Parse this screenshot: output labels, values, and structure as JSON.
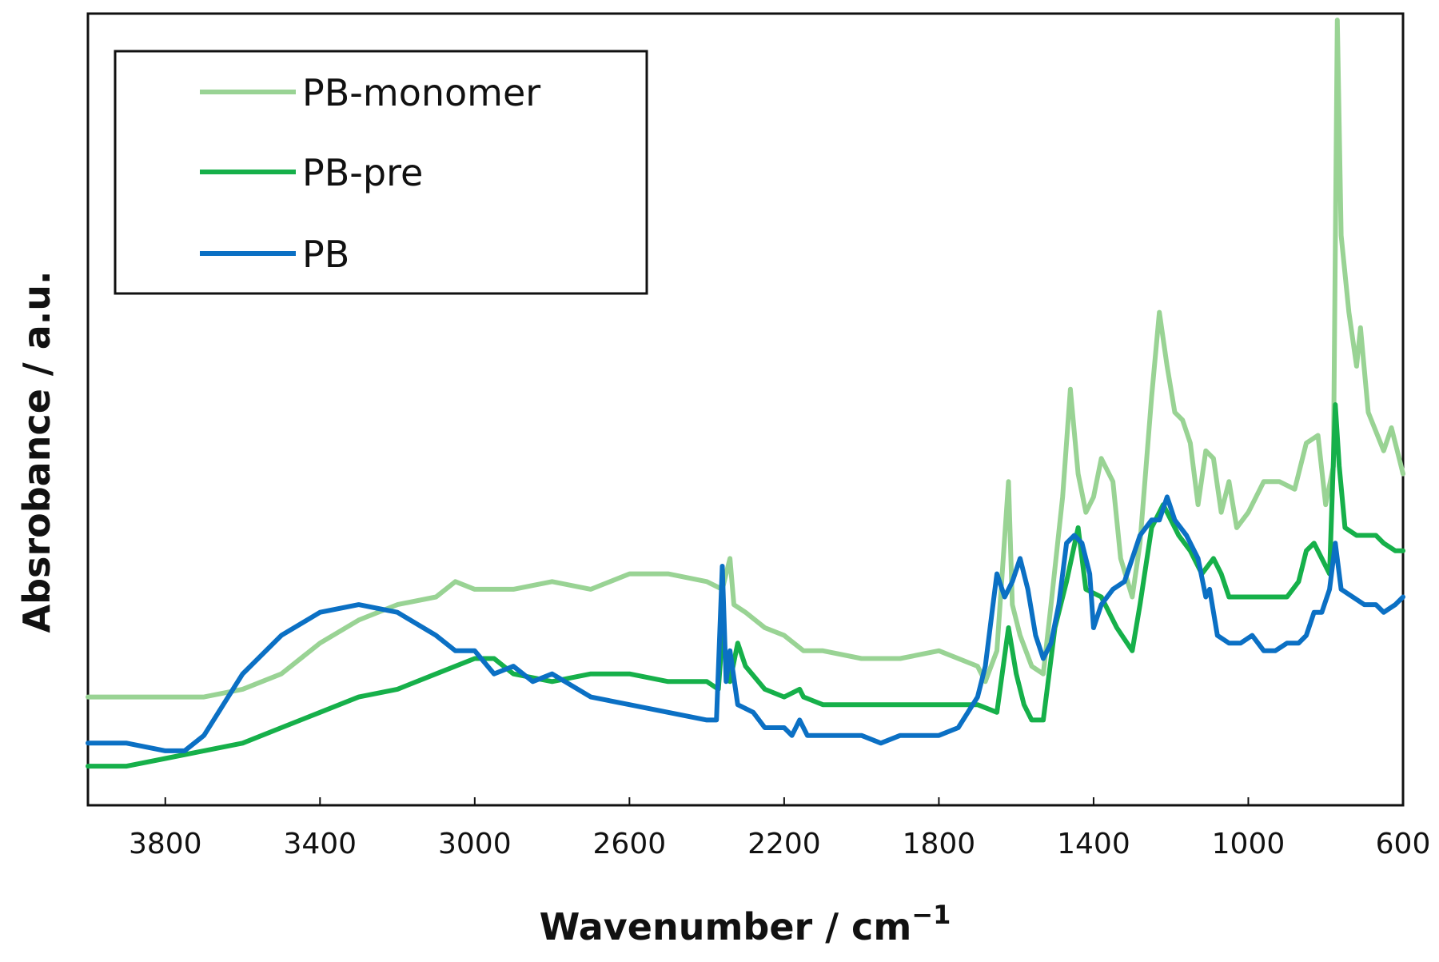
{
  "chart_data": {
    "type": "line",
    "title": "",
    "xlabel": "Wavenumber / cm",
    "xlabel_superscript": "−1",
    "ylabel": "Absrobance / a.u.",
    "xlim": [
      4000,
      600
    ],
    "ylim": [
      0,
      1
    ],
    "x_reversed": true,
    "x_ticks": [
      3800,
      3400,
      3000,
      2600,
      2200,
      1800,
      1400,
      1000,
      600
    ],
    "y_ticks": [],
    "grid": false,
    "legend_position": "top-left",
    "series": [
      {
        "name": "PB-monomer",
        "color": "#99d394",
        "points": [
          [
            4000,
            0.12
          ],
          [
            3800,
            0.12
          ],
          [
            3700,
            0.12
          ],
          [
            3600,
            0.13
          ],
          [
            3500,
            0.15
          ],
          [
            3400,
            0.19
          ],
          [
            3300,
            0.22
          ],
          [
            3200,
            0.24
          ],
          [
            3100,
            0.25
          ],
          [
            3050,
            0.27
          ],
          [
            3000,
            0.26
          ],
          [
            2900,
            0.26
          ],
          [
            2800,
            0.27
          ],
          [
            2700,
            0.26
          ],
          [
            2600,
            0.28
          ],
          [
            2500,
            0.28
          ],
          [
            2400,
            0.27
          ],
          [
            2360,
            0.26
          ],
          [
            2340,
            0.3
          ],
          [
            2330,
            0.24
          ],
          [
            2300,
            0.23
          ],
          [
            2250,
            0.21
          ],
          [
            2200,
            0.2
          ],
          [
            2150,
            0.18
          ],
          [
            2100,
            0.18
          ],
          [
            2000,
            0.17
          ],
          [
            1900,
            0.17
          ],
          [
            1800,
            0.18
          ],
          [
            1700,
            0.16
          ],
          [
            1680,
            0.14
          ],
          [
            1650,
            0.18
          ],
          [
            1620,
            0.4
          ],
          [
            1610,
            0.24
          ],
          [
            1590,
            0.2
          ],
          [
            1560,
            0.16
          ],
          [
            1530,
            0.15
          ],
          [
            1510,
            0.24
          ],
          [
            1480,
            0.38
          ],
          [
            1460,
            0.52
          ],
          [
            1440,
            0.41
          ],
          [
            1420,
            0.36
          ],
          [
            1400,
            0.38
          ],
          [
            1380,
            0.43
          ],
          [
            1350,
            0.4
          ],
          [
            1330,
            0.3
          ],
          [
            1300,
            0.25
          ],
          [
            1280,
            0.32
          ],
          [
            1250,
            0.51
          ],
          [
            1230,
            0.62
          ],
          [
            1210,
            0.55
          ],
          [
            1190,
            0.49
          ],
          [
            1170,
            0.48
          ],
          [
            1150,
            0.45
          ],
          [
            1130,
            0.37
          ],
          [
            1110,
            0.44
          ],
          [
            1090,
            0.43
          ],
          [
            1070,
            0.36
          ],
          [
            1050,
            0.4
          ],
          [
            1030,
            0.34
          ],
          [
            1000,
            0.36
          ],
          [
            960,
            0.4
          ],
          [
            920,
            0.4
          ],
          [
            880,
            0.39
          ],
          [
            850,
            0.45
          ],
          [
            820,
            0.46
          ],
          [
            800,
            0.37
          ],
          [
            780,
            0.42
          ],
          [
            770,
            1.0
          ],
          [
            760,
            0.72
          ],
          [
            740,
            0.62
          ],
          [
            720,
            0.55
          ],
          [
            710,
            0.6
          ],
          [
            690,
            0.49
          ],
          [
            650,
            0.44
          ],
          [
            630,
            0.47
          ],
          [
            610,
            0.43
          ],
          [
            600,
            0.41
          ]
        ]
      },
      {
        "name": "PB-pre",
        "color": "#16b04a",
        "points": [
          [
            4000,
            0.03
          ],
          [
            3900,
            0.03
          ],
          [
            3800,
            0.04
          ],
          [
            3700,
            0.05
          ],
          [
            3600,
            0.06
          ],
          [
            3500,
            0.08
          ],
          [
            3400,
            0.1
          ],
          [
            3300,
            0.12
          ],
          [
            3200,
            0.13
          ],
          [
            3100,
            0.15
          ],
          [
            3000,
            0.17
          ],
          [
            2950,
            0.17
          ],
          [
            2900,
            0.15
          ],
          [
            2800,
            0.14
          ],
          [
            2700,
            0.15
          ],
          [
            2600,
            0.15
          ],
          [
            2500,
            0.14
          ],
          [
            2400,
            0.14
          ],
          [
            2370,
            0.13
          ],
          [
            2360,
            0.2
          ],
          [
            2340,
            0.14
          ],
          [
            2320,
            0.19
          ],
          [
            2300,
            0.16
          ],
          [
            2250,
            0.13
          ],
          [
            2200,
            0.12
          ],
          [
            2160,
            0.13
          ],
          [
            2150,
            0.12
          ],
          [
            2100,
            0.11
          ],
          [
            2000,
            0.11
          ],
          [
            1900,
            0.11
          ],
          [
            1800,
            0.11
          ],
          [
            1700,
            0.11
          ],
          [
            1650,
            0.1
          ],
          [
            1620,
            0.21
          ],
          [
            1600,
            0.15
          ],
          [
            1580,
            0.11
          ],
          [
            1560,
            0.09
          ],
          [
            1530,
            0.09
          ],
          [
            1500,
            0.21
          ],
          [
            1470,
            0.27
          ],
          [
            1440,
            0.34
          ],
          [
            1420,
            0.26
          ],
          [
            1380,
            0.25
          ],
          [
            1340,
            0.21
          ],
          [
            1300,
            0.18
          ],
          [
            1280,
            0.24
          ],
          [
            1250,
            0.34
          ],
          [
            1220,
            0.37
          ],
          [
            1200,
            0.35
          ],
          [
            1180,
            0.33
          ],
          [
            1150,
            0.31
          ],
          [
            1120,
            0.28
          ],
          [
            1090,
            0.3
          ],
          [
            1070,
            0.28
          ],
          [
            1050,
            0.25
          ],
          [
            1020,
            0.25
          ],
          [
            980,
            0.25
          ],
          [
            950,
            0.25
          ],
          [
            900,
            0.25
          ],
          [
            870,
            0.27
          ],
          [
            850,
            0.31
          ],
          [
            830,
            0.32
          ],
          [
            810,
            0.3
          ],
          [
            790,
            0.28
          ],
          [
            775,
            0.5
          ],
          [
            765,
            0.42
          ],
          [
            750,
            0.34
          ],
          [
            720,
            0.33
          ],
          [
            700,
            0.33
          ],
          [
            670,
            0.33
          ],
          [
            650,
            0.32
          ],
          [
            620,
            0.31
          ],
          [
            600,
            0.31
          ]
        ]
      },
      {
        "name": "PB",
        "color": "#0b70c4",
        "points": [
          [
            4000,
            0.06
          ],
          [
            3900,
            0.06
          ],
          [
            3800,
            0.05
          ],
          [
            3750,
            0.05
          ],
          [
            3700,
            0.07
          ],
          [
            3650,
            0.11
          ],
          [
            3600,
            0.15
          ],
          [
            3500,
            0.2
          ],
          [
            3400,
            0.23
          ],
          [
            3300,
            0.24
          ],
          [
            3200,
            0.23
          ],
          [
            3100,
            0.2
          ],
          [
            3050,
            0.18
          ],
          [
            3000,
            0.18
          ],
          [
            2950,
            0.15
          ],
          [
            2900,
            0.16
          ],
          [
            2850,
            0.14
          ],
          [
            2800,
            0.15
          ],
          [
            2700,
            0.12
          ],
          [
            2600,
            0.11
          ],
          [
            2500,
            0.1
          ],
          [
            2400,
            0.09
          ],
          [
            2375,
            0.09
          ],
          [
            2360,
            0.29
          ],
          [
            2350,
            0.14
          ],
          [
            2340,
            0.18
          ],
          [
            2320,
            0.11
          ],
          [
            2280,
            0.1
          ],
          [
            2250,
            0.08
          ],
          [
            2200,
            0.08
          ],
          [
            2180,
            0.07
          ],
          [
            2160,
            0.09
          ],
          [
            2140,
            0.07
          ],
          [
            2100,
            0.07
          ],
          [
            2000,
            0.07
          ],
          [
            1950,
            0.06
          ],
          [
            1900,
            0.07
          ],
          [
            1800,
            0.07
          ],
          [
            1750,
            0.08
          ],
          [
            1700,
            0.12
          ],
          [
            1680,
            0.16
          ],
          [
            1660,
            0.24
          ],
          [
            1650,
            0.28
          ],
          [
            1630,
            0.25
          ],
          [
            1610,
            0.27
          ],
          [
            1590,
            0.3
          ],
          [
            1570,
            0.26
          ],
          [
            1550,
            0.2
          ],
          [
            1530,
            0.17
          ],
          [
            1510,
            0.19
          ],
          [
            1490,
            0.24
          ],
          [
            1470,
            0.32
          ],
          [
            1450,
            0.33
          ],
          [
            1430,
            0.32
          ],
          [
            1410,
            0.28
          ],
          [
            1400,
            0.21
          ],
          [
            1380,
            0.24
          ],
          [
            1350,
            0.26
          ],
          [
            1320,
            0.27
          ],
          [
            1300,
            0.3
          ],
          [
            1280,
            0.33
          ],
          [
            1250,
            0.35
          ],
          [
            1230,
            0.35
          ],
          [
            1210,
            0.38
          ],
          [
            1190,
            0.35
          ],
          [
            1160,
            0.33
          ],
          [
            1130,
            0.3
          ],
          [
            1110,
            0.25
          ],
          [
            1100,
            0.26
          ],
          [
            1080,
            0.2
          ],
          [
            1050,
            0.19
          ],
          [
            1020,
            0.19
          ],
          [
            990,
            0.2
          ],
          [
            960,
            0.18
          ],
          [
            930,
            0.18
          ],
          [
            900,
            0.19
          ],
          [
            870,
            0.19
          ],
          [
            850,
            0.2
          ],
          [
            830,
            0.23
          ],
          [
            810,
            0.23
          ],
          [
            790,
            0.26
          ],
          [
            775,
            0.32
          ],
          [
            760,
            0.26
          ],
          [
            730,
            0.25
          ],
          [
            700,
            0.24
          ],
          [
            670,
            0.24
          ],
          [
            650,
            0.23
          ],
          [
            620,
            0.24
          ],
          [
            600,
            0.25
          ]
        ]
      }
    ]
  }
}
